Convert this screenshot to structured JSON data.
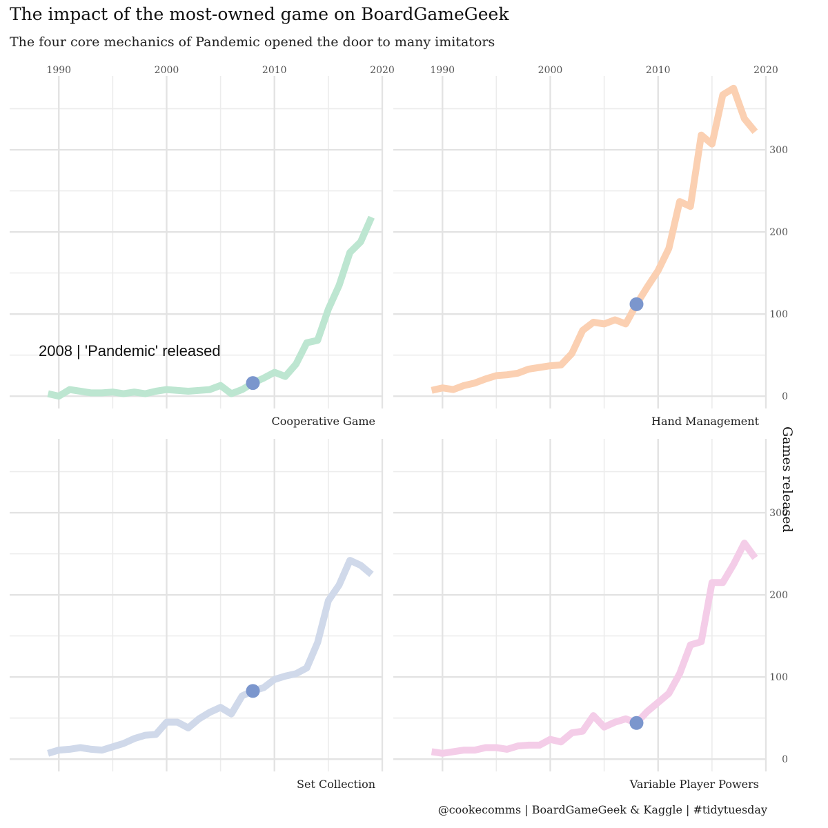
{
  "title": "The impact of the most-owned game on BoardGameGeek",
  "subtitle": "The four core mechanics of Pandemic opened the door to many imitators",
  "caption": "@cookecomms | BoardGameGeek & Kaggle | #tidytuesday",
  "chart_data": {
    "type": "line",
    "ylabel": "Games released",
    "x_ticks": [
      1990,
      2000,
      2010,
      2020
    ],
    "y_ticks": [
      0,
      100,
      200,
      300
    ],
    "xlim": [
      1988,
      2020
    ],
    "ylim": [
      -15,
      390
    ],
    "grid": true,
    "highlight_year": 2008,
    "highlight_color": "#7b96cd",
    "annotation": "2008 | 'Pandemic' released",
    "panels": [
      {
        "name": "Cooperative Game",
        "color": "#bde6d1",
        "x": [
          1989,
          1990,
          1991,
          1992,
          1993,
          1994,
          1995,
          1996,
          1997,
          1998,
          1999,
          2000,
          2001,
          2002,
          2003,
          2004,
          2005,
          2006,
          2007,
          2008,
          2009,
          2010,
          2011,
          2012,
          2013,
          2014,
          2015,
          2016,
          2017,
          2018,
          2019
        ],
        "values": [
          3,
          0,
          8,
          6,
          4,
          4,
          5,
          3,
          5,
          3,
          6,
          8,
          7,
          6,
          7,
          8,
          13,
          3,
          8,
          16,
          22,
          29,
          24,
          39,
          65,
          68,
          106,
          135,
          175,
          188,
          218
        ]
      },
      {
        "name": "Hand Management",
        "color": "#fbd0b2",
        "x": [
          1989,
          1990,
          1991,
          1992,
          1993,
          1994,
          1995,
          1996,
          1997,
          1998,
          1999,
          2000,
          2001,
          2002,
          2003,
          2004,
          2005,
          2006,
          2007,
          2008,
          2009,
          2010,
          2011,
          2012,
          2013,
          2014,
          2015,
          2016,
          2017,
          2018,
          2019
        ],
        "values": [
          7,
          10,
          8,
          13,
          16,
          21,
          25,
          26,
          28,
          33,
          35,
          37,
          38,
          52,
          80,
          90,
          88,
          93,
          88,
          112,
          133,
          153,
          180,
          237,
          231,
          318,
          307,
          367,
          375,
          338,
          322
        ]
      },
      {
        "name": "Set Collection",
        "color": "#d0d9ea",
        "x": [
          1989,
          1990,
          1991,
          1992,
          1993,
          1994,
          1995,
          1996,
          1997,
          1998,
          1999,
          2000,
          2001,
          2002,
          2003,
          2004,
          2005,
          2006,
          2007,
          2008,
          2009,
          2010,
          2011,
          2012,
          2013,
          2014,
          2015,
          2016,
          2017,
          2018,
          2019
        ],
        "values": [
          7,
          11,
          12,
          14,
          12,
          11,
          15,
          19,
          25,
          29,
          30,
          45,
          45,
          38,
          49,
          57,
          63,
          55,
          77,
          83,
          87,
          97,
          101,
          104,
          111,
          142,
          193,
          212,
          242,
          236,
          225
        ]
      },
      {
        "name": "Variable Player Powers",
        "color": "#f4cde8",
        "x": [
          1989,
          1990,
          1991,
          1992,
          1993,
          1994,
          1995,
          1996,
          1997,
          1998,
          1999,
          2000,
          2001,
          2002,
          2003,
          2004,
          2005,
          2006,
          2007,
          2008,
          2009,
          2010,
          2011,
          2012,
          2013,
          2014,
          2015,
          2016,
          2017,
          2018,
          2019
        ],
        "values": [
          9,
          7,
          9,
          11,
          11,
          14,
          14,
          12,
          16,
          17,
          17,
          24,
          21,
          32,
          34,
          53,
          39,
          45,
          49,
          44,
          58,
          69,
          80,
          104,
          139,
          143,
          215,
          215,
          237,
          263,
          245
        ]
      }
    ]
  }
}
